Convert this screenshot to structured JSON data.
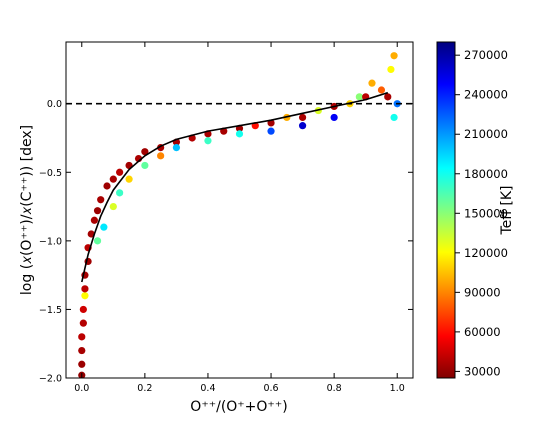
{
  "chart_data": {
    "type": "scatter",
    "xlabel": "O⁺⁺/(O⁺+O⁺⁺)",
    "ylabel": "log (𝑥(O⁺⁺)/𝑥(C⁺⁺)) [dex]",
    "xlim": [
      -0.05,
      1.05
    ],
    "ylim": [
      -2.0,
      0.45
    ],
    "x_ticks": [
      0.0,
      0.2,
      0.4,
      0.6,
      0.8,
      1.0
    ],
    "x_tick_labels": [
      "0.0",
      "0.2",
      "0.4",
      "0.6",
      "0.8",
      "1.0"
    ],
    "y_ticks": [
      -2.0,
      -1.5,
      -1.0,
      -0.5,
      0.0
    ],
    "y_tick_labels": [
      "−2.0",
      "−1.5",
      "−1.0",
      "−0.5",
      "0.0"
    ],
    "grid": false,
    "reference_line": {
      "y": 0.0,
      "style": "dashed",
      "color": "#000000"
    },
    "fit_curve": {
      "color": "#000000",
      "x": [
        0.0,
        0.01,
        0.02,
        0.04,
        0.06,
        0.08,
        0.1,
        0.15,
        0.2,
        0.25,
        0.3,
        0.4,
        0.5,
        0.6,
        0.7,
        0.8,
        0.9,
        0.97
      ],
      "y": [
        -1.3,
        -1.2,
        -1.1,
        -0.95,
        -0.82,
        -0.72,
        -0.63,
        -0.48,
        -0.38,
        -0.31,
        -0.26,
        -0.2,
        -0.16,
        -0.12,
        -0.07,
        -0.02,
        0.03,
        0.08
      ]
    },
    "color_encoding": "Teff",
    "colorbar": {
      "label": "Teff [K]",
      "min": 25000,
      "max": 280000,
      "ticks": [
        30000,
        60000,
        90000,
        120000,
        150000,
        180000,
        210000,
        240000,
        270000
      ],
      "tick_labels": [
        "30000",
        "60000",
        "90000",
        "120000",
        "150000",
        "180000",
        "210000",
        "240000",
        "270000"
      ],
      "colormap": [
        "#7f0000",
        "#ff0000",
        "#ff8000",
        "#ffff00",
        "#80ff80",
        "#00ffff",
        "#0080ff",
        "#0000ff",
        "#00007f"
      ]
    },
    "points": [
      {
        "x": 0.0,
        "y": -1.98,
        "teff": 30000
      },
      {
        "x": 0.0,
        "y": -1.9,
        "teff": 32000
      },
      {
        "x": 0.0,
        "y": -1.8,
        "teff": 35000
      },
      {
        "x": 0.0,
        "y": -1.7,
        "teff": 40000
      },
      {
        "x": 0.005,
        "y": -1.6,
        "teff": 38000
      },
      {
        "x": 0.005,
        "y": -1.5,
        "teff": 45000
      },
      {
        "x": 0.01,
        "y": -1.4,
        "teff": 120000
      },
      {
        "x": 0.01,
        "y": -1.35,
        "teff": 40000
      },
      {
        "x": 0.01,
        "y": -1.25,
        "teff": 35000
      },
      {
        "x": 0.02,
        "y": -1.15,
        "teff": 33000
      },
      {
        "x": 0.02,
        "y": -1.05,
        "teff": 40000
      },
      {
        "x": 0.03,
        "y": -0.95,
        "teff": 34000
      },
      {
        "x": 0.04,
        "y": -0.85,
        "teff": 36000
      },
      {
        "x": 0.05,
        "y": -0.78,
        "teff": 32000
      },
      {
        "x": 0.05,
        "y": -1.0,
        "teff": 160000
      },
      {
        "x": 0.06,
        "y": -0.7,
        "teff": 35000
      },
      {
        "x": 0.07,
        "y": -0.9,
        "teff": 190000
      },
      {
        "x": 0.08,
        "y": -0.6,
        "teff": 33000
      },
      {
        "x": 0.1,
        "y": -0.55,
        "teff": 35000
      },
      {
        "x": 0.1,
        "y": -0.75,
        "teff": 130000
      },
      {
        "x": 0.12,
        "y": -0.5,
        "teff": 40000
      },
      {
        "x": 0.12,
        "y": -0.65,
        "teff": 170000
      },
      {
        "x": 0.15,
        "y": -0.45,
        "teff": 34000
      },
      {
        "x": 0.15,
        "y": -0.55,
        "teff": 110000
      },
      {
        "x": 0.18,
        "y": -0.4,
        "teff": 36000
      },
      {
        "x": 0.2,
        "y": -0.35,
        "teff": 33000
      },
      {
        "x": 0.2,
        "y": -0.45,
        "teff": 160000
      },
      {
        "x": 0.25,
        "y": -0.32,
        "teff": 35000
      },
      {
        "x": 0.25,
        "y": -0.38,
        "teff": 90000
      },
      {
        "x": 0.3,
        "y": -0.28,
        "teff": 34000
      },
      {
        "x": 0.3,
        "y": -0.32,
        "teff": 200000
      },
      {
        "x": 0.35,
        "y": -0.25,
        "teff": 38000
      },
      {
        "x": 0.4,
        "y": -0.22,
        "teff": 36000
      },
      {
        "x": 0.4,
        "y": -0.27,
        "teff": 170000
      },
      {
        "x": 0.45,
        "y": -0.2,
        "teff": 35000
      },
      {
        "x": 0.5,
        "y": -0.18,
        "teff": 33000
      },
      {
        "x": 0.5,
        "y": -0.22,
        "teff": 180000
      },
      {
        "x": 0.55,
        "y": -0.16,
        "teff": 60000
      },
      {
        "x": 0.6,
        "y": -0.14,
        "teff": 34000
      },
      {
        "x": 0.6,
        "y": -0.2,
        "teff": 230000
      },
      {
        "x": 0.65,
        "y": -0.1,
        "teff": 100000
      },
      {
        "x": 0.7,
        "y": -0.1,
        "teff": 36000
      },
      {
        "x": 0.7,
        "y": -0.16,
        "teff": 260000
      },
      {
        "x": 0.75,
        "y": -0.05,
        "teff": 130000
      },
      {
        "x": 0.8,
        "y": -0.02,
        "teff": 35000
      },
      {
        "x": 0.8,
        "y": -0.1,
        "teff": 250000
      },
      {
        "x": 0.85,
        "y": 0.0,
        "teff": 110000
      },
      {
        "x": 0.88,
        "y": 0.05,
        "teff": 150000
      },
      {
        "x": 0.9,
        "y": 0.05,
        "teff": 40000
      },
      {
        "x": 0.92,
        "y": 0.15,
        "teff": 100000
      },
      {
        "x": 0.95,
        "y": 0.1,
        "teff": 80000
      },
      {
        "x": 0.97,
        "y": 0.05,
        "teff": 35000
      },
      {
        "x": 0.98,
        "y": 0.25,
        "teff": 120000
      },
      {
        "x": 0.99,
        "y": 0.35,
        "teff": 100000
      },
      {
        "x": 0.99,
        "y": -0.1,
        "teff": 180000
      },
      {
        "x": 1.0,
        "y": 0.0,
        "teff": 220000
      }
    ]
  }
}
